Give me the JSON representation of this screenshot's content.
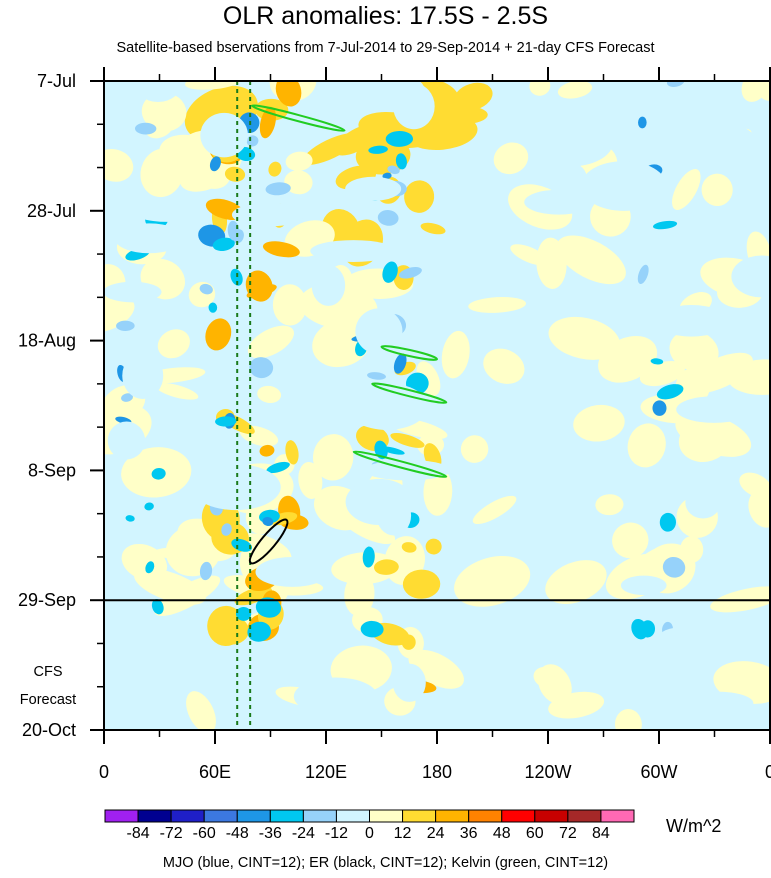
{
  "chart_data": {
    "type": "heatmap",
    "title": "OLR anomalies: 17.5S - 2.5S",
    "subtitle": "Satellite-based bservations from 7-Jul-2014 to 29-Sep-2014 + 21-day CFS Forecast",
    "x_ticks": [
      "0",
      "60E",
      "120E",
      "180",
      "120W",
      "60W",
      "0"
    ],
    "x_tick_lons": [
      0,
      60,
      120,
      180,
      240,
      300,
      360
    ],
    "y_ticks": [
      "7-Jul",
      "28-Jul",
      "18-Aug",
      "8-Sep",
      "29-Sep",
      "20-Oct"
    ],
    "y_tick_days": [
      0,
      21,
      42,
      63,
      84,
      105
    ],
    "observation_end_label": "29-Sep",
    "forecast_label_line1": "CFS",
    "forecast_label_line2": "Forecast",
    "colorbar": {
      "colors": [
        "#a020f0",
        "#000090",
        "#1f1fc8",
        "#3c78e0",
        "#1e96e6",
        "#00c8f0",
        "#96d2fa",
        "#d2f5ff",
        "#ffffc8",
        "#ffdc32",
        "#ffb400",
        "#ff8200",
        "#ff0000",
        "#c80000",
        "#a52828",
        "#ff69b4"
      ],
      "labels": [
        "-84",
        "-72",
        "-60",
        "-48",
        "-36",
        "-24",
        "-12",
        "0",
        "12",
        "24",
        "36",
        "48",
        "60",
        "72",
        "84"
      ],
      "units": "W/m^2"
    },
    "mjo_lines_lon": [
      72,
      79
    ],
    "er_contour": {
      "lon": [
        78,
        100
      ],
      "day": [
        78,
        71
      ]
    },
    "kelvin_contours": [
      {
        "lon": [
          80,
          130
        ],
        "day": [
          4,
          8
        ]
      },
      {
        "lon": [
          150,
          180
        ],
        "day": [
          43,
          45
        ]
      },
      {
        "lon": [
          145,
          185
        ],
        "day": [
          49,
          52
        ]
      },
      {
        "lon": [
          135,
          185
        ],
        "day": [
          60,
          64
        ]
      }
    ],
    "footer": "MJO (blue, CINT=12); ER (black, CINT=12); Kelvin (green, CINT=12)"
  }
}
